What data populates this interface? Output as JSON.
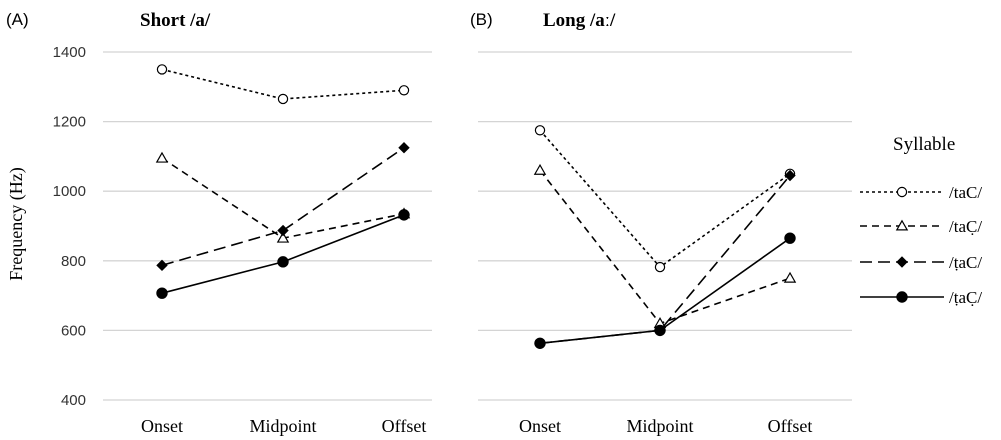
{
  "chart_data": {
    "type": "line",
    "ylabel": "Frequency (Hz)",
    "ylim": [
      400,
      1400
    ],
    "yticks": [
      400,
      600,
      800,
      1000,
      1200,
      1400
    ],
    "grid": true,
    "categories": [
      "Onset",
      "Midpoint",
      "Offset"
    ],
    "legend": {
      "title": "Syllable",
      "placement": "right"
    },
    "series_styles": [
      {
        "dash": "3 3",
        "marker": "circle-open"
      },
      {
        "dash": "7 5",
        "marker": "triangle-open"
      },
      {
        "dash": "12 6",
        "marker": "diamond-filled"
      },
      {
        "dash": "",
        "marker": "circle-filled"
      }
    ],
    "panels": [
      {
        "letter": "(A)",
        "title": "Short /a/",
        "series": [
          {
            "name": "/taC/",
            "values": [
              1350,
              1265,
              1290
            ]
          },
          {
            "name": "/taC̣/",
            "values": [
              1095,
              865,
              935
            ]
          },
          {
            "name": "/ṭaC/",
            "values": [
              787,
              887,
              1125
            ]
          },
          {
            "name": "/ṭaC̣/",
            "values": [
              707,
              797,
              932
            ]
          }
        ]
      },
      {
        "letter": "(B)",
        "title": "Long /aː/",
        "series": [
          {
            "name": "/taC/",
            "values": [
              1175,
              782,
              1050
            ]
          },
          {
            "name": "/taC̣/",
            "values": [
              1060,
              620,
              750
            ]
          },
          {
            "name": "/ṭaC/",
            "values": [
              563,
              600,
              1045
            ]
          },
          {
            "name": "/ṭaC̣/",
            "values": [
              563,
              600,
              865
            ]
          }
        ]
      }
    ]
  }
}
